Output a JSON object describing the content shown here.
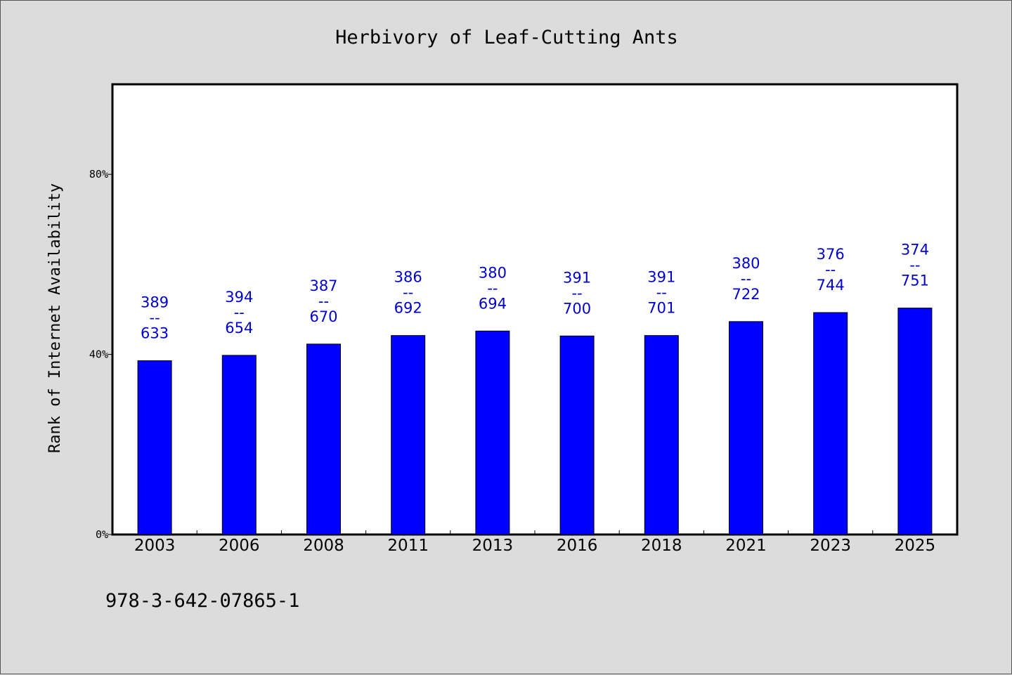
{
  "chart_data": {
    "type": "bar",
    "title": "Herbivory of Leaf-Cutting Ants",
    "xlabel": "",
    "ylabel": "Rank of Internet Availability",
    "ylim": [
      0,
      1
    ],
    "yticks": [
      0,
      0.4,
      0.8
    ],
    "ytick_labels": [
      "0%",
      "40%",
      "80%"
    ],
    "categories": [
      "2003",
      "2006",
      "2008",
      "2011",
      "2013",
      "2016",
      "2018",
      "2021",
      "2023",
      "2025"
    ],
    "values": [
      0.386,
      0.398,
      0.423,
      0.442,
      0.452,
      0.441,
      0.442,
      0.473,
      0.493,
      0.503
    ],
    "bar_labels": [
      [
        "389",
        "--",
        "633"
      ],
      [
        "394",
        "--",
        "654"
      ],
      [
        "387",
        "--",
        "670"
      ],
      [
        "386",
        "--",
        "692"
      ],
      [
        "380",
        "--",
        "694"
      ],
      [
        "391",
        "--",
        "700"
      ],
      [
        "391",
        "--",
        "701"
      ],
      [
        "380",
        "--",
        "722"
      ],
      [
        "376",
        "--",
        "744"
      ],
      [
        "374",
        "--",
        "751"
      ]
    ],
    "grid": false,
    "bar_color": "#0000ff",
    "label_color": "#0000cc",
    "plot_background": "#ffffff",
    "page_background": "#dcdcdc"
  },
  "footer": {
    "isbn": "978-3-642-07865-1"
  }
}
